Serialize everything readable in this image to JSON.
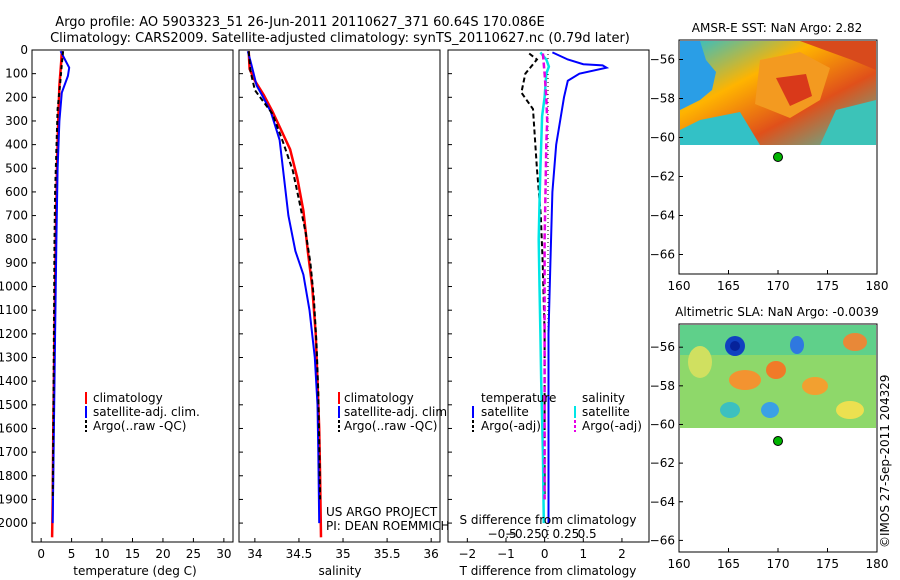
{
  "title_line1": "Argo profile: AO 5903323_51 26-Jun-2011 20110627_371 60.64S 170.086E",
  "title_line2": "Climatology: CARS2009. Satellite-adjusted climatology: synTS_20110627.nc (0.79d later)",
  "colors": {
    "climatology": "#ff0000",
    "satellite": "#0000ff",
    "argo": "#000000",
    "s_satellite": "#00e6e6",
    "s_argo": "#e600e6",
    "marker": "#00b400"
  },
  "depth_axis": {
    "ticks": [
      0,
      100,
      200,
      300,
      400,
      500,
      600,
      700,
      800,
      900,
      1000,
      1100,
      1200,
      1300,
      1400,
      1500,
      1600,
      1700,
      1800,
      1900,
      2000
    ],
    "labels": [
      "0",
      "100",
      "200",
      "300",
      "400",
      "500",
      "600",
      "700",
      "800",
      "900",
      "1000",
      "1100",
      "1200",
      "1300",
      "1400",
      "1500",
      "1600",
      "1700",
      "1800",
      "1900",
      "2000"
    ]
  },
  "temp_panel": {
    "xlabel": "temperature (deg C)",
    "xticks": [
      0,
      5,
      10,
      15,
      20,
      25,
      30
    ],
    "xtick_labels": [
      "0",
      "5",
      "10",
      "15",
      "20",
      "25",
      "30"
    ],
    "legend": [
      "climatology",
      "satellite-adj. clim.",
      "Argo(..raw -QC)"
    ]
  },
  "sal_panel": {
    "xlabel": "salinity",
    "xticks": [
      34,
      34.5,
      35,
      35.5,
      36
    ],
    "xtick_labels": [
      "34",
      "34.5",
      "35",
      "35.5",
      "36"
    ],
    "legend": [
      "climatology",
      "satellite-adj. clim.",
      "Argo(..raw -QC)"
    ],
    "credit_line1": "US ARGO PROJECT",
    "credit_line2": "PI: DEAN ROEMMICH"
  },
  "diff_panel": {
    "xlabel_bottom": "T difference from climatology",
    "xlabel_top": "S difference from climatology",
    "t_xticks": [
      -2,
      -1,
      0,
      1,
      2
    ],
    "t_xtick_labels": [
      "−2",
      "−1",
      "0",
      "1",
      "2"
    ],
    "s_xticks": [
      -0.5,
      -0.25,
      0,
      0.25,
      0.5
    ],
    "s_xtick_labels": [
      "−0.5",
      "−0.25",
      "0",
      "0.25",
      "0.5"
    ],
    "legend_temp_header": "temperature",
    "legend_temp": [
      "satellite",
      "Argo(-adj)"
    ],
    "legend_sal_header": "salinity",
    "legend_sal": [
      "satellite",
      "Argo(-adj)"
    ]
  },
  "sst_map": {
    "title": "AMSR-E SST: NaN Argo: 2.82",
    "yticks": [
      -56,
      -58,
      -60,
      -62,
      -64,
      -66
    ],
    "ytick_labels": [
      "−56",
      "−58",
      "−60",
      "−62",
      "−64",
      "−66"
    ],
    "xticks": [
      160,
      165,
      170,
      175,
      180
    ],
    "xtick_labels": [
      "160",
      "165",
      "170",
      "175",
      "180"
    ]
  },
  "sla_map": {
    "title": "Altimetric SLA: NaN Argo: -0.0039",
    "yticks": [
      -56,
      -58,
      -60,
      -62,
      -64,
      -66
    ],
    "ytick_labels": [
      "−56",
      "−58",
      "−60",
      "−62",
      "−64",
      "−66"
    ],
    "xticks": [
      160,
      165,
      170,
      175,
      180
    ],
    "xtick_labels": [
      "160",
      "165",
      "170",
      "175",
      "180"
    ]
  },
  "float_position": {
    "lon": 170.086,
    "lat": -60.64
  },
  "stamp": "©IMOS 27-Sep-2011 204329",
  "chart_data": [
    {
      "type": "line",
      "xlabel": "temperature (deg C)",
      "xlim": [
        -1.5,
        31.5
      ],
      "ylim": [
        2080,
        0
      ],
      "series": [
        {
          "name": "climatology",
          "points": [
            [
              3.4,
              5
            ],
            [
              3.3,
              50
            ],
            [
              3.0,
              150
            ],
            [
              2.8,
              300
            ],
            [
              2.6,
              500
            ],
            [
              2.4,
              800
            ],
            [
              2.2,
              1200
            ],
            [
              2.0,
              1600
            ],
            [
              1.9,
              1900
            ],
            [
              1.8,
              2060
            ]
          ]
        },
        {
          "name": "satellite-adj. clim.",
          "points": [
            [
              3.2,
              5
            ],
            [
              3.9,
              40
            ],
            [
              4.6,
              75
            ],
            [
              4.4,
              110
            ],
            [
              3.4,
              180
            ],
            [
              3.0,
              300
            ],
            [
              2.7,
              500
            ],
            [
              2.5,
              800
            ],
            [
              2.3,
              1200
            ],
            [
              2.1,
              1600
            ],
            [
              1.9,
              2000
            ]
          ]
        },
        {
          "name": "Argo(..raw -QC)",
          "points": [
            [
              3.6,
              5
            ],
            [
              3.4,
              60
            ],
            [
              3.1,
              150
            ],
            [
              2.7,
              250
            ],
            [
              2.5,
              420
            ],
            [
              2.3,
              600
            ],
            [
              2.2,
              800
            ],
            [
              2.1,
              1200
            ],
            [
              2.0,
              1600
            ],
            [
              1.9,
              1900
            ]
          ]
        }
      ]
    },
    {
      "type": "line",
      "xlabel": "salinity",
      "xlim": [
        33.82,
        36.1
      ],
      "ylim": [
        2080,
        0
      ],
      "series": [
        {
          "name": "climatology",
          "points": [
            [
              33.93,
              5
            ],
            [
              33.94,
              80
            ],
            [
              34.0,
              130
            ],
            [
              34.1,
              190
            ],
            [
              34.2,
              260
            ],
            [
              34.3,
              340
            ],
            [
              34.4,
              420
            ],
            [
              34.48,
              540
            ],
            [
              34.55,
              680
            ],
            [
              34.6,
              850
            ],
            [
              34.65,
              1000
            ],
            [
              34.69,
              1200
            ],
            [
              34.71,
              1400
            ],
            [
              34.73,
              1600
            ],
            [
              34.74,
              1800
            ],
            [
              34.75,
              2060
            ]
          ]
        },
        {
          "name": "satellite-adj. clim.",
          "points": [
            [
              33.92,
              5
            ],
            [
              33.96,
              60
            ],
            [
              34.02,
              150
            ],
            [
              34.08,
              190
            ],
            [
              34.18,
              260
            ],
            [
              34.28,
              380
            ],
            [
              34.33,
              540
            ],
            [
              34.38,
              700
            ],
            [
              34.46,
              850
            ],
            [
              34.55,
              950
            ],
            [
              34.62,
              1100
            ],
            [
              34.68,
              1300
            ],
            [
              34.71,
              1500
            ],
            [
              34.72,
              1700
            ],
            [
              34.73,
              2000
            ]
          ]
        },
        {
          "name": "Argo(..raw -QC)",
          "points": [
            [
              33.93,
              5
            ],
            [
              33.95,
              90
            ],
            [
              34.0,
              170
            ],
            [
              34.2,
              270
            ],
            [
              34.32,
              390
            ],
            [
              34.43,
              510
            ],
            [
              34.51,
              650
            ],
            [
              34.58,
              780
            ],
            [
              34.63,
              900
            ],
            [
              34.67,
              1050
            ],
            [
              34.7,
              1250
            ],
            [
              34.72,
              1450
            ],
            [
              34.73,
              1650
            ],
            [
              34.74,
              1900
            ]
          ]
        }
      ]
    },
    {
      "type": "line",
      "xlabel": "T difference from climatology",
      "xlim": [
        -2.5,
        2.7
      ],
      "ylim": [
        2080,
        0
      ],
      "series": [
        {
          "name": "temperature satellite",
          "points": [
            [
              0.2,
              10
            ],
            [
              0.6,
              40
            ],
            [
              1.0,
              60
            ],
            [
              1.5,
              65
            ],
            [
              1.6,
              75
            ],
            [
              0.9,
              100
            ],
            [
              0.6,
              130
            ],
            [
              0.5,
              200
            ],
            [
              0.4,
              300
            ],
            [
              0.3,
              400
            ],
            [
              0.2,
              600
            ],
            [
              0.15,
              900
            ],
            [
              0.1,
              1200
            ],
            [
              0.1,
              1600
            ],
            [
              0.1,
              2000
            ]
          ]
        },
        {
          "name": "temperature Argo(-adj)",
          "points": [
            [
              -0.4,
              15
            ],
            [
              -0.2,
              40
            ],
            [
              -0.5,
              100
            ],
            [
              -0.6,
              180
            ],
            [
              -0.3,
              250
            ],
            [
              -0.2,
              500
            ],
            [
              -0.1,
              700
            ],
            [
              -0.05,
              900
            ],
            [
              0,
              1200
            ],
            [
              0,
              1600
            ],
            [
              0,
              1900
            ]
          ]
        },
        {
          "name": "salinity satellite",
          "points": [
            [
              -0.05,
              10
            ],
            [
              0.02,
              40
            ],
            [
              0.05,
              70
            ],
            [
              0.02,
              100
            ],
            [
              0.0,
              200
            ],
            [
              -0.03,
              280
            ],
            [
              -0.04,
              400
            ],
            [
              -0.05,
              500
            ],
            [
              -0.06,
              650
            ],
            [
              -0.07,
              800
            ],
            [
              -0.06,
              1000
            ],
            [
              -0.05,
              1200
            ],
            [
              -0.04,
              1400
            ],
            [
              -0.02,
              1700
            ],
            [
              -0.01,
              2000
            ]
          ]
        },
        {
          "name": "salinity Argo(-adj)",
          "points": [
            [
              -0.02,
              15
            ],
            [
              0.0,
              100
            ],
            [
              0.02,
              200
            ],
            [
              0.03,
              300
            ],
            [
              0.02,
              400
            ],
            [
              0.01,
              600
            ],
            [
              0.0,
              800
            ],
            [
              0.0,
              1000
            ],
            [
              0.0,
              1500
            ],
            [
              0.0,
              1900
            ]
          ]
        }
      ]
    }
  ]
}
